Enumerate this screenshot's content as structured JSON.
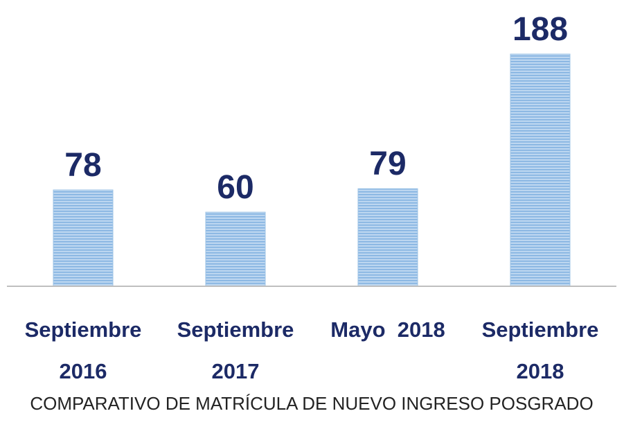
{
  "chart_data": {
    "type": "bar",
    "title": "COMPARATIVO DE MATRÍCULA DE NUEVO INGRESO POSGRADO",
    "categories": [
      "Septiembre 2016",
      "Septiembre 2017",
      "Mayo  2018",
      "Septiembre 2018"
    ],
    "values": [
      78,
      60,
      79,
      188
    ],
    "color": "#9dc3e6"
  }
}
